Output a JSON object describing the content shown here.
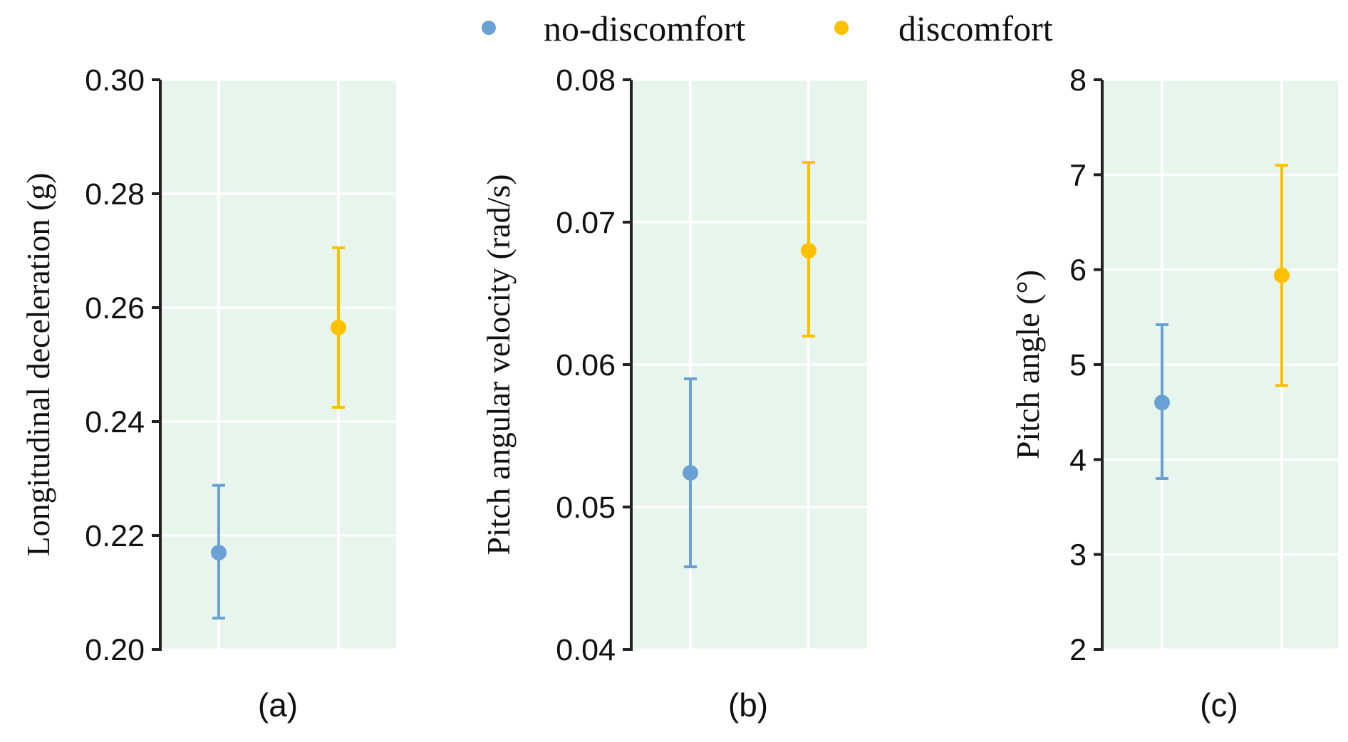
{
  "colors": {
    "no_discomfort": "#6aa1d4",
    "discomfort": "#ffc000",
    "plot_background": "#e7f5ec",
    "grid": "#ffffff",
    "axis": "#222222"
  },
  "legend": {
    "items": [
      {
        "label": "no-discomfort",
        "color": "#6aa1d4"
      },
      {
        "label": "discomfort",
        "color": "#ffc000"
      }
    ]
  },
  "chart_data": [
    {
      "type": "scatter",
      "panel_label": "(a)",
      "ylabel": "Longitudinal deceleration (g)",
      "ylim": [
        0.2,
        0.3
      ],
      "yticks": [
        "0.20",
        "0.22",
        "0.24",
        "0.26",
        "0.28",
        "0.30"
      ],
      "ytick_values": [
        0.2,
        0.22,
        0.24,
        0.26,
        0.28,
        0.3
      ],
      "series": [
        {
          "name": "no-discomfort",
          "x": 1,
          "mean": 0.217,
          "lower": 0.2055,
          "upper": 0.2288
        },
        {
          "name": "discomfort",
          "x": 2,
          "mean": 0.2565,
          "lower": 0.2425,
          "upper": 0.2705
        }
      ]
    },
    {
      "type": "scatter",
      "panel_label": "(b)",
      "ylabel": "Pitch angular velocity (rad/s)",
      "ylim": [
        0.04,
        0.08
      ],
      "yticks": [
        "0.04",
        "0.05",
        "0.06",
        "0.07",
        "0.08"
      ],
      "ytick_values": [
        0.04,
        0.05,
        0.06,
        0.07,
        0.08
      ],
      "series": [
        {
          "name": "no-discomfort",
          "x": 1,
          "mean": 0.0524,
          "lower": 0.0458,
          "upper": 0.059
        },
        {
          "name": "discomfort",
          "x": 2,
          "mean": 0.068,
          "lower": 0.062,
          "upper": 0.0742
        }
      ]
    },
    {
      "type": "scatter",
      "panel_label": "(c)",
      "ylabel": "Pitch angle (°)",
      "ylim": [
        2,
        8
      ],
      "yticks": [
        "2",
        "3",
        "4",
        "5",
        "6",
        "7",
        "8"
      ],
      "ytick_values": [
        2,
        3,
        4,
        5,
        6,
        7,
        8
      ],
      "series": [
        {
          "name": "no-discomfort",
          "x": 1,
          "mean": 4.6,
          "lower": 3.8,
          "upper": 5.42
        },
        {
          "name": "discomfort",
          "x": 2,
          "mean": 5.94,
          "lower": 4.78,
          "upper": 7.1
        }
      ]
    }
  ]
}
